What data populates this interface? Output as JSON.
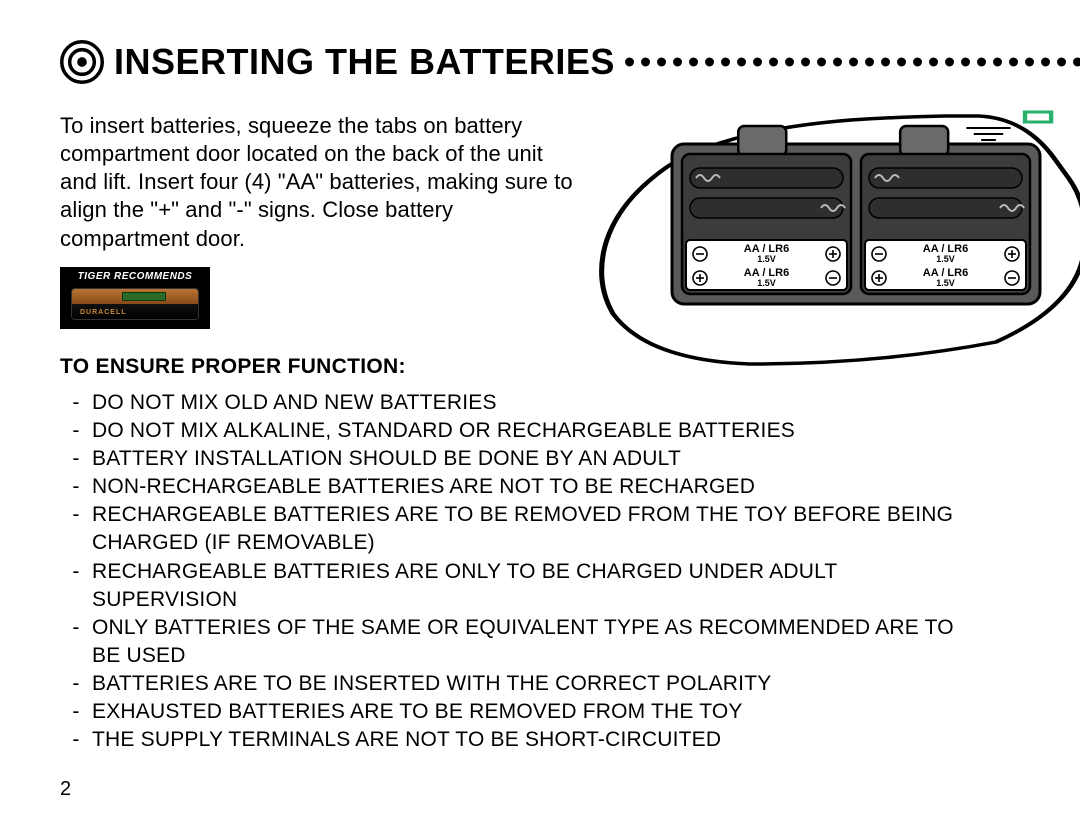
{
  "header": {
    "title": "INSERTING THE BATTERIES",
    "dot_color": "#000000",
    "dot_count": 42,
    "dot_radius": 4.5,
    "dot_spacing": 16
  },
  "intro": "To insert batteries, squeeze the tabs on battery compartment door located on the back of the unit and lift. Insert four (4) \"AA\" batteries, making sure to align the \"+\" and \"-\" signs. Close battery compartment door.",
  "badge": {
    "headline": "TIGER RECOMMENDS",
    "brand": "DURACELL"
  },
  "subheading": "TO ENSURE PROPER FUNCTION:",
  "warnings": [
    "DO NOT MIX OLD AND NEW BATTERIES",
    "DO NOT MIX ALKALINE, STANDARD OR RECHARGEABLE BATTERIES",
    "BATTERY INSTALLATION SHOULD BE DONE BY AN ADULT",
    "NON-RECHARGEABLE BATTERIES ARE NOT TO BE RECHARGED",
    "RECHARGEABLE BATTERIES ARE TO BE REMOVED FROM THE TOY BEFORE BEING CHARGED (IF REMOVABLE)",
    "RECHARGEABLE BATTERIES ARE ONLY TO BE CHARGED UNDER ADULT SUPERVISION",
    "ONLY BATTERIES OF THE SAME OR EQUIVALENT TYPE AS RECOMMENDED ARE TO BE USED",
    "BATTERIES ARE TO BE INSERTED WITH THE CORRECT POLARITY",
    "EXHAUSTED BATTERIES ARE TO BE REMOVED FROM THE TOY",
    "THE SUPPLY TERMINALS ARE NOT TO BE SHORT-CIRCUITED"
  ],
  "page_number": "2",
  "diagram": {
    "outline_color": "#000000",
    "accent_color": "#27b06b",
    "compartment_fill": "#5a5a5a",
    "compartment_stroke": "#000000",
    "slot_fill": "#3c3c3c",
    "label_bg": "#ffffff",
    "label_text": "#000000",
    "cells": [
      {
        "line1": "AA / LR6",
        "line2": "1.5V",
        "left_symbol": "−",
        "right_symbol": "+"
      },
      {
        "line1": "AA / LR6",
        "line2": "1.5V",
        "left_symbol": "+",
        "right_symbol": "−"
      },
      {
        "line1": "AA / LR6",
        "line2": "1.5V",
        "left_symbol": "−",
        "right_symbol": "+"
      },
      {
        "line1": "AA / LR6",
        "line2": "1.5V",
        "left_symbol": "+",
        "right_symbol": "−"
      }
    ]
  }
}
